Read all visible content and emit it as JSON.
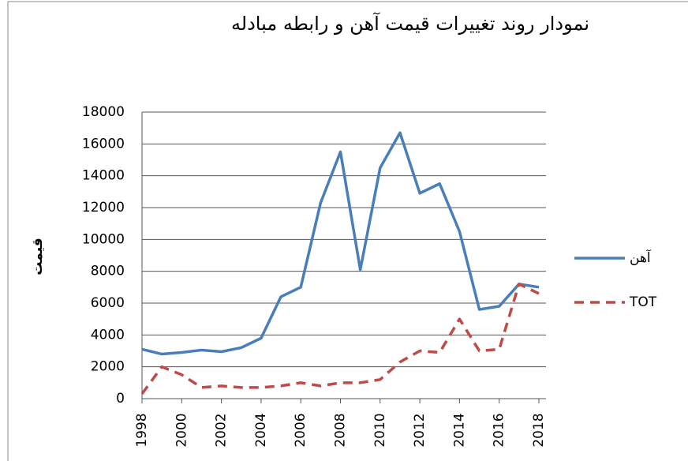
{
  "chart_data": {
    "type": "line",
    "title": "نمودار روند تغییرات قیمت آهن و رابطه مبادله",
    "y_label": "قیمت",
    "x": [
      1998,
      1999,
      2000,
      2001,
      2002,
      2003,
      2004,
      2005,
      2006,
      2007,
      2008,
      2009,
      2010,
      2011,
      2012,
      2013,
      2014,
      2015,
      2016,
      2017,
      2018
    ],
    "xlim": [
      1998,
      2018
    ],
    "xticks": [
      1998,
      2000,
      2002,
      2004,
      2006,
      2008,
      2010,
      2012,
      2014,
      2016,
      2018
    ],
    "ylim": [
      0,
      18000
    ],
    "yticks": [
      0,
      2000,
      4000,
      6000,
      8000,
      10000,
      12000,
      14000,
      16000,
      18000
    ],
    "grid": true,
    "legend": "right",
    "series": [
      {
        "name": "آهن",
        "color": "#4a7ebb",
        "dash": false,
        "values": [
          3100,
          2800,
          2900,
          3050,
          2950,
          3200,
          3800,
          6400,
          7000,
          12300,
          15500,
          8100,
          14500,
          16700,
          12900,
          13500,
          10500,
          5600,
          5800,
          7200,
          7000
        ]
      },
      {
        "name": "TOT",
        "color": "#be4b48",
        "dash": true,
        "values": [
          300,
          2000,
          1500,
          700,
          800,
          700,
          700,
          800,
          1000,
          800,
          1000,
          1000,
          1200,
          2300,
          3000,
          2900,
          5000,
          3000,
          3100,
          7200,
          6600
        ]
      }
    ]
  }
}
